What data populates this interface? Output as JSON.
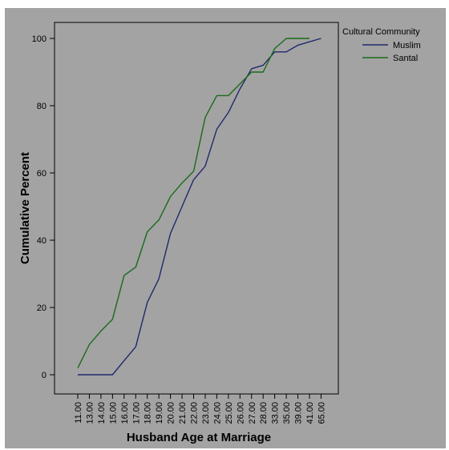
{
  "chart_data": {
    "type": "line",
    "xlabel": "Husband Age at Marriage",
    "ylabel": "Cumulative Percent",
    "categories": [
      "11.00",
      "13.00",
      "14.00",
      "15.00",
      "16.00",
      "17.00",
      "18.00",
      "19.00",
      "20.00",
      "21.00",
      "22.00",
      "23.00",
      "24.00",
      "25.00",
      "26.00",
      "27.00",
      "28.00",
      "33.00",
      "35.00",
      "39.00",
      "41.00",
      "65.00"
    ],
    "ylim": [
      0,
      100
    ],
    "yticks": [
      0,
      20,
      40,
      60,
      80,
      100
    ],
    "legend": {
      "title": "Cultural Community",
      "position": "top-right"
    },
    "series": [
      {
        "name": "Muslim",
        "color": "#1f2a6b",
        "values": [
          0,
          0,
          0,
          0,
          4.2,
          8.3,
          21.5,
          28.5,
          42,
          50,
          58,
          62,
          73,
          78,
          85,
          91,
          92,
          96,
          96,
          98,
          null,
          100
        ]
      },
      {
        "name": "Santal",
        "color": "#1a6b1a",
        "values": [
          2,
          9,
          13,
          16.5,
          29.5,
          32,
          42.5,
          46,
          53,
          57,
          60.5,
          76.5,
          83,
          83,
          86.5,
          90,
          90,
          97,
          100,
          100,
          100,
          null
        ]
      }
    ],
    "colors": {
      "background": "#a3a3a3",
      "frame": "#000000"
    }
  }
}
